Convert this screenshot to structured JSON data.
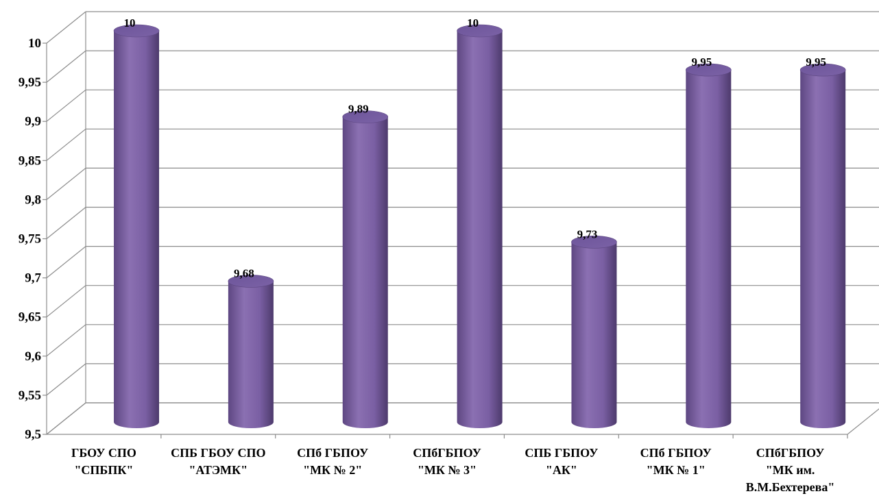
{
  "chart_data": {
    "type": "bar",
    "title": "",
    "xlabel": "",
    "ylabel": "",
    "ylim": [
      9.5,
      10
    ],
    "y_ticks": [
      "9,5",
      "9,55",
      "9,6",
      "9,65",
      "9,7",
      "9,75",
      "9,8",
      "9,85",
      "9,9",
      "9,95",
      "10"
    ],
    "grid": true,
    "bar_shape": "cylinder-3d",
    "bar_color": "#8064A2",
    "categories": [
      [
        "ГБОУ СПО",
        "\"СПБПК\""
      ],
      [
        "СПБ ГБОУ СПО",
        "\"АТЭМК\""
      ],
      [
        "СПб ГБПОУ",
        "\"МК № 2\""
      ],
      [
        "СПбГБПОУ",
        "\"МК № 3\""
      ],
      [
        "СПБ ГБПОУ",
        "\"АК\""
      ],
      [
        "СПб ГБПОУ",
        "\"МК № 1\""
      ],
      [
        "СПбГБПОУ",
        "\"МК им.",
        "В.М.Бехтерева\""
      ]
    ],
    "values": [
      10,
      9.68,
      9.89,
      10,
      9.73,
      9.95,
      9.95
    ],
    "data_labels": [
      "10",
      "9,68",
      "9,89",
      "10",
      "9,73",
      "9,95",
      "9,95"
    ]
  }
}
